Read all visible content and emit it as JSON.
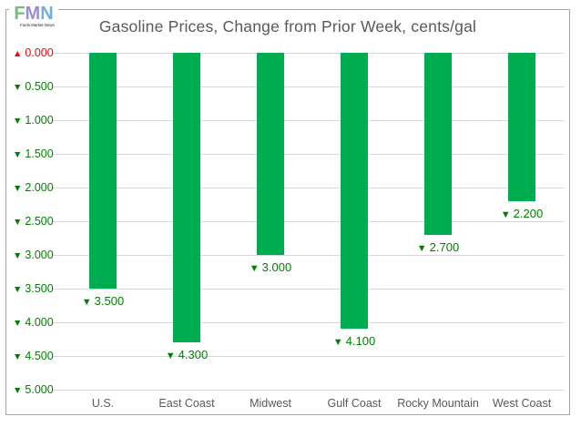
{
  "logo": {
    "letters": [
      {
        "char": "F",
        "color": "#6fbe73"
      },
      {
        "char": "M",
        "color": "#988fd4"
      },
      {
        "char": "N",
        "color": "#6fb0e0"
      }
    ],
    "tagline": "Fuels Market News"
  },
  "chart_data": {
    "type": "bar",
    "title": "Gasoline Prices, Change from Prior Week, cents/gal",
    "categories": [
      "U.S.",
      "East Coast",
      "Midwest",
      "Gulf Coast",
      "Rocky Mountain",
      "West Coast"
    ],
    "values": [
      -3.5,
      -4.3,
      -3.0,
      -4.1,
      -2.7,
      -2.2
    ],
    "bar_labels": [
      {
        "arrow": "▼",
        "text": "3.500"
      },
      {
        "arrow": "▼",
        "text": "4.300"
      },
      {
        "arrow": "▼",
        "text": "3.000"
      },
      {
        "arrow": "▼",
        "text": "4.100"
      },
      {
        "arrow": "▼",
        "text": "2.700"
      },
      {
        "arrow": "▼",
        "text": "2.200"
      }
    ],
    "y_axis": {
      "range": [
        0,
        -5
      ],
      "step": 0.5,
      "ticks": [
        {
          "arrow": "▲",
          "text": "0.000",
          "color": "#ff0000"
        },
        {
          "arrow": "▼",
          "text": "0.500",
          "color": "#008000"
        },
        {
          "arrow": "▼",
          "text": "1.000",
          "color": "#008000"
        },
        {
          "arrow": "▼",
          "text": "1.500",
          "color": "#008000"
        },
        {
          "arrow": "▼",
          "text": "2.000",
          "color": "#008000"
        },
        {
          "arrow": "▼",
          "text": "2.500",
          "color": "#008000"
        },
        {
          "arrow": "▼",
          "text": "3.000",
          "color": "#008000"
        },
        {
          "arrow": "▼",
          "text": "3.500",
          "color": "#008000"
        },
        {
          "arrow": "▼",
          "text": "4.000",
          "color": "#008000"
        },
        {
          "arrow": "▼",
          "text": "4.500",
          "color": "#008000"
        },
        {
          "arrow": "▼",
          "text": "5.000",
          "color": "#008000"
        }
      ]
    },
    "grid": true,
    "legend": "none",
    "colors": {
      "bar": "#00ac50",
      "label_green": "#008000",
      "label_red": "#ff0000",
      "gridline": "#d9d9d9",
      "title": "#595959",
      "category": "#595959",
      "frame_border": "#a6a6a6"
    }
  }
}
